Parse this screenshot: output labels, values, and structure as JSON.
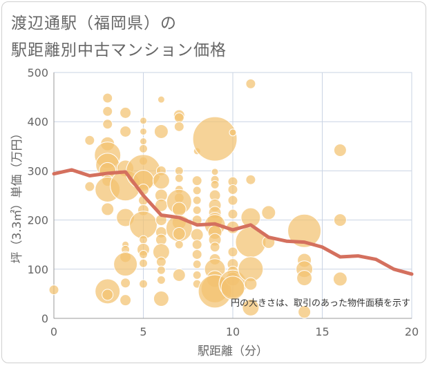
{
  "title_line1": "渡辺通駅（福岡県）の",
  "title_line2": "駅距離別中古マンション価格",
  "chart_data": {
    "type": "scatter",
    "title": "渡辺通駅（福岡県）の駅距離別中古マンション価格",
    "xlabel": "駅距離（分）",
    "ylabel": "坪（3.3㎡）単価（万円）",
    "xlim": [
      0,
      20
    ],
    "ylim": [
      0,
      500
    ],
    "xticks": [
      "0",
      "5",
      "10",
      "15",
      "20"
    ],
    "yticks": [
      "0",
      "100",
      "200",
      "300",
      "400",
      "500"
    ],
    "grid": true,
    "note": "円の大きさは、取引のあった物件面積を示す",
    "colors": {
      "bubble": "#f3c270",
      "bubble_edge": "#ffffff",
      "line": "#d4705e",
      "grid": "#c9d3e3",
      "axis": "#999999"
    },
    "bubbles": [
      {
        "x": 0,
        "y": 58,
        "s": 7
      },
      {
        "x": 2,
        "y": 362,
        "s": 7
      },
      {
        "x": 2,
        "y": 268,
        "s": 7
      },
      {
        "x": 3,
        "y": 448,
        "s": 7
      },
      {
        "x": 3,
        "y": 421,
        "s": 7
      },
      {
        "x": 3,
        "y": 395,
        "s": 7
      },
      {
        "x": 3,
        "y": 355,
        "s": 10
      },
      {
        "x": 3,
        "y": 332,
        "s": 19
      },
      {
        "x": 3,
        "y": 312,
        "s": 17
      },
      {
        "x": 3,
        "y": 300,
        "s": 12
      },
      {
        "x": 3,
        "y": 280,
        "s": 8
      },
      {
        "x": 3,
        "y": 262,
        "s": 18
      },
      {
        "x": 3,
        "y": 222,
        "s": 9
      },
      {
        "x": 3,
        "y": 55,
        "s": 18
      },
      {
        "x": 3,
        "y": 48,
        "s": 8
      },
      {
        "x": 4,
        "y": 418,
        "s": 8
      },
      {
        "x": 4,
        "y": 380,
        "s": 8
      },
      {
        "x": 4,
        "y": 305,
        "s": 12
      },
      {
        "x": 4,
        "y": 270,
        "s": 22
      },
      {
        "x": 4,
        "y": 205,
        "s": 13
      },
      {
        "x": 4,
        "y": 150,
        "s": 5
      },
      {
        "x": 4,
        "y": 140,
        "s": 6
      },
      {
        "x": 4,
        "y": 125,
        "s": 8
      },
      {
        "x": 4,
        "y": 110,
        "s": 17
      },
      {
        "x": 4,
        "y": 72,
        "s": 7
      },
      {
        "x": 4,
        "y": 37,
        "s": 8
      },
      {
        "x": 5,
        "y": 402,
        "s": 5
      },
      {
        "x": 5,
        "y": 380,
        "s": 5
      },
      {
        "x": 5,
        "y": 360,
        "s": 5
      },
      {
        "x": 5,
        "y": 345,
        "s": 6
      },
      {
        "x": 5,
        "y": 320,
        "s": 6
      },
      {
        "x": 5,
        "y": 298,
        "s": 25
      },
      {
        "x": 5,
        "y": 280,
        "s": 15
      },
      {
        "x": 5,
        "y": 262,
        "s": 8
      },
      {
        "x": 5,
        "y": 240,
        "s": 7
      },
      {
        "x": 5,
        "y": 220,
        "s": 8
      },
      {
        "x": 5,
        "y": 190,
        "s": 20
      },
      {
        "x": 5,
        "y": 160,
        "s": 6
      },
      {
        "x": 5,
        "y": 140,
        "s": 9
      },
      {
        "x": 5,
        "y": 130,
        "s": 6
      },
      {
        "x": 5,
        "y": 112,
        "s": 6
      },
      {
        "x": 5,
        "y": 70,
        "s": 6
      },
      {
        "x": 6,
        "y": 445,
        "s": 5
      },
      {
        "x": 6,
        "y": 380,
        "s": 10
      },
      {
        "x": 6,
        "y": 300,
        "s": 7
      },
      {
        "x": 6,
        "y": 280,
        "s": 12
      },
      {
        "x": 6,
        "y": 250,
        "s": 9
      },
      {
        "x": 6,
        "y": 230,
        "s": 9
      },
      {
        "x": 6,
        "y": 200,
        "s": 8
      },
      {
        "x": 6,
        "y": 175,
        "s": 8
      },
      {
        "x": 6,
        "y": 160,
        "s": 8
      },
      {
        "x": 6,
        "y": 135,
        "s": 12
      },
      {
        "x": 6,
        "y": 115,
        "s": 7
      },
      {
        "x": 6,
        "y": 98,
        "s": 6
      },
      {
        "x": 6,
        "y": 78,
        "s": 6
      },
      {
        "x": 6,
        "y": 40,
        "s": 11
      },
      {
        "x": 7,
        "y": 413,
        "s": 8
      },
      {
        "x": 7,
        "y": 408,
        "s": 7
      },
      {
        "x": 7,
        "y": 390,
        "s": 7
      },
      {
        "x": 7,
        "y": 300,
        "s": 6
      },
      {
        "x": 7,
        "y": 285,
        "s": 6
      },
      {
        "x": 7,
        "y": 262,
        "s": 6
      },
      {
        "x": 7,
        "y": 245,
        "s": 7
      },
      {
        "x": 7,
        "y": 237,
        "s": 18
      },
      {
        "x": 7,
        "y": 222,
        "s": 10
      },
      {
        "x": 7,
        "y": 195,
        "s": 10
      },
      {
        "x": 7,
        "y": 183,
        "s": 19
      },
      {
        "x": 7,
        "y": 172,
        "s": 9
      },
      {
        "x": 7,
        "y": 150,
        "s": 6
      },
      {
        "x": 7,
        "y": 88,
        "s": 9
      },
      {
        "x": 8,
        "y": 340,
        "s": 5
      },
      {
        "x": 8,
        "y": 280,
        "s": 7
      },
      {
        "x": 8,
        "y": 260,
        "s": 6
      },
      {
        "x": 8,
        "y": 240,
        "s": 6
      },
      {
        "x": 8,
        "y": 220,
        "s": 6
      },
      {
        "x": 8,
        "y": 200,
        "s": 7
      },
      {
        "x": 8,
        "y": 170,
        "s": 9
      },
      {
        "x": 8,
        "y": 150,
        "s": 7
      },
      {
        "x": 8,
        "y": 130,
        "s": 7
      },
      {
        "x": 8,
        "y": 110,
        "s": 6
      },
      {
        "x": 8,
        "y": 88,
        "s": 6
      },
      {
        "x": 8,
        "y": 70,
        "s": 6
      },
      {
        "x": 9,
        "y": 365,
        "s": 32
      },
      {
        "x": 9,
        "y": 298,
        "s": 5
      },
      {
        "x": 9,
        "y": 282,
        "s": 6
      },
      {
        "x": 9,
        "y": 272,
        "s": 6
      },
      {
        "x": 9,
        "y": 250,
        "s": 8
      },
      {
        "x": 9,
        "y": 230,
        "s": 9
      },
      {
        "x": 9,
        "y": 215,
        "s": 9
      },
      {
        "x": 9,
        "y": 200,
        "s": 11
      },
      {
        "x": 9,
        "y": 190,
        "s": 15
      },
      {
        "x": 9,
        "y": 175,
        "s": 10
      },
      {
        "x": 9,
        "y": 160,
        "s": 9
      },
      {
        "x": 9,
        "y": 145,
        "s": 7
      },
      {
        "x": 9,
        "y": 120,
        "s": 8
      },
      {
        "x": 9,
        "y": 100,
        "s": 15
      },
      {
        "x": 9,
        "y": 80,
        "s": 12
      },
      {
        "x": 9,
        "y": 60,
        "s": 20
      },
      {
        "x": 9,
        "y": 55,
        "s": 24
      },
      {
        "x": 10,
        "y": 378,
        "s": 5
      },
      {
        "x": 10,
        "y": 278,
        "s": 7
      },
      {
        "x": 10,
        "y": 262,
        "s": 7
      },
      {
        "x": 10,
        "y": 240,
        "s": 7
      },
      {
        "x": 10,
        "y": 212,
        "s": 7
      },
      {
        "x": 10,
        "y": 185,
        "s": 9
      },
      {
        "x": 10,
        "y": 135,
        "s": 7
      },
      {
        "x": 10,
        "y": 110,
        "s": 8
      },
      {
        "x": 10,
        "y": 95,
        "s": 8
      },
      {
        "x": 10,
        "y": 80,
        "s": 10
      },
      {
        "x": 10,
        "y": 70,
        "s": 20
      },
      {
        "x": 10,
        "y": 62,
        "s": 17
      },
      {
        "x": 11,
        "y": 477,
        "s": 7
      },
      {
        "x": 11,
        "y": 282,
        "s": 7
      },
      {
        "x": 11,
        "y": 205,
        "s": 14
      },
      {
        "x": 11,
        "y": 155,
        "s": 22
      },
      {
        "x": 11,
        "y": 100,
        "s": 18
      },
      {
        "x": 11,
        "y": 70,
        "s": 9
      },
      {
        "x": 11,
        "y": 22,
        "s": 12
      },
      {
        "x": 12,
        "y": 215,
        "s": 10
      },
      {
        "x": 12,
        "y": 155,
        "s": 9
      },
      {
        "x": 14,
        "y": 178,
        "s": 24
      },
      {
        "x": 14,
        "y": 118,
        "s": 10
      },
      {
        "x": 14,
        "y": 100,
        "s": 12
      },
      {
        "x": 14,
        "y": 82,
        "s": 11
      },
      {
        "x": 14,
        "y": 13,
        "s": 9
      },
      {
        "x": 16,
        "y": 342,
        "s": 9
      },
      {
        "x": 16,
        "y": 200,
        "s": 9
      },
      {
        "x": 16,
        "y": 80,
        "s": 10
      }
    ],
    "line": {
      "x": [
        0,
        1,
        2,
        3,
        4,
        5,
        6,
        7,
        8,
        9,
        10,
        11,
        12,
        13,
        14,
        15,
        16,
        17,
        18,
        19,
        20
      ],
      "y": [
        294,
        302,
        290,
        295,
        298,
        250,
        210,
        205,
        190,
        192,
        180,
        190,
        165,
        157,
        155,
        145,
        125,
        127,
        120,
        100,
        90
      ]
    }
  }
}
